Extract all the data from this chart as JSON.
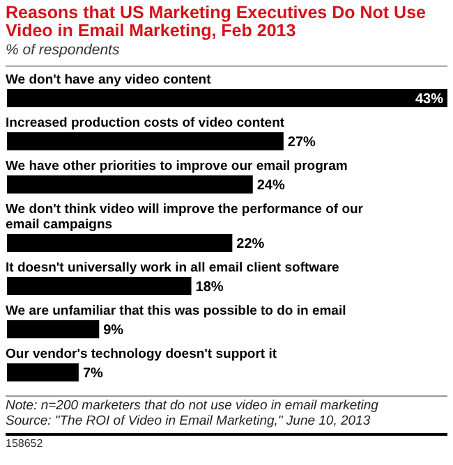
{
  "chart_data": {
    "type": "bar",
    "orientation": "horizontal",
    "title": "Reasons that US Marketing Executives Do Not Use Video in Email Marketing, Feb 2013",
    "subtitle": "% of respondents",
    "categories": [
      "We don't have any video content",
      "Increased production costs of video content",
      "We have other priorities to improve our email program",
      "We don't think video will improve the performance of our email campaigns",
      "It doesn't universally work in all email client software",
      "We are unfamiliar that this was possible to do in email",
      "Our vendor's technology doesn't support it"
    ],
    "values": [
      43,
      27,
      24,
      22,
      18,
      9,
      7
    ],
    "value_labels": [
      "43%",
      "27%",
      "24%",
      "22%",
      "18%",
      "9%",
      "7%"
    ],
    "color": "#000000",
    "annotations": [
      "Note: n=200 marketers that do not use video in email marketing",
      "Source: \"The ROI of Video in Email Marketing,\" June 10, 2013",
      "158652"
    ]
  }
}
